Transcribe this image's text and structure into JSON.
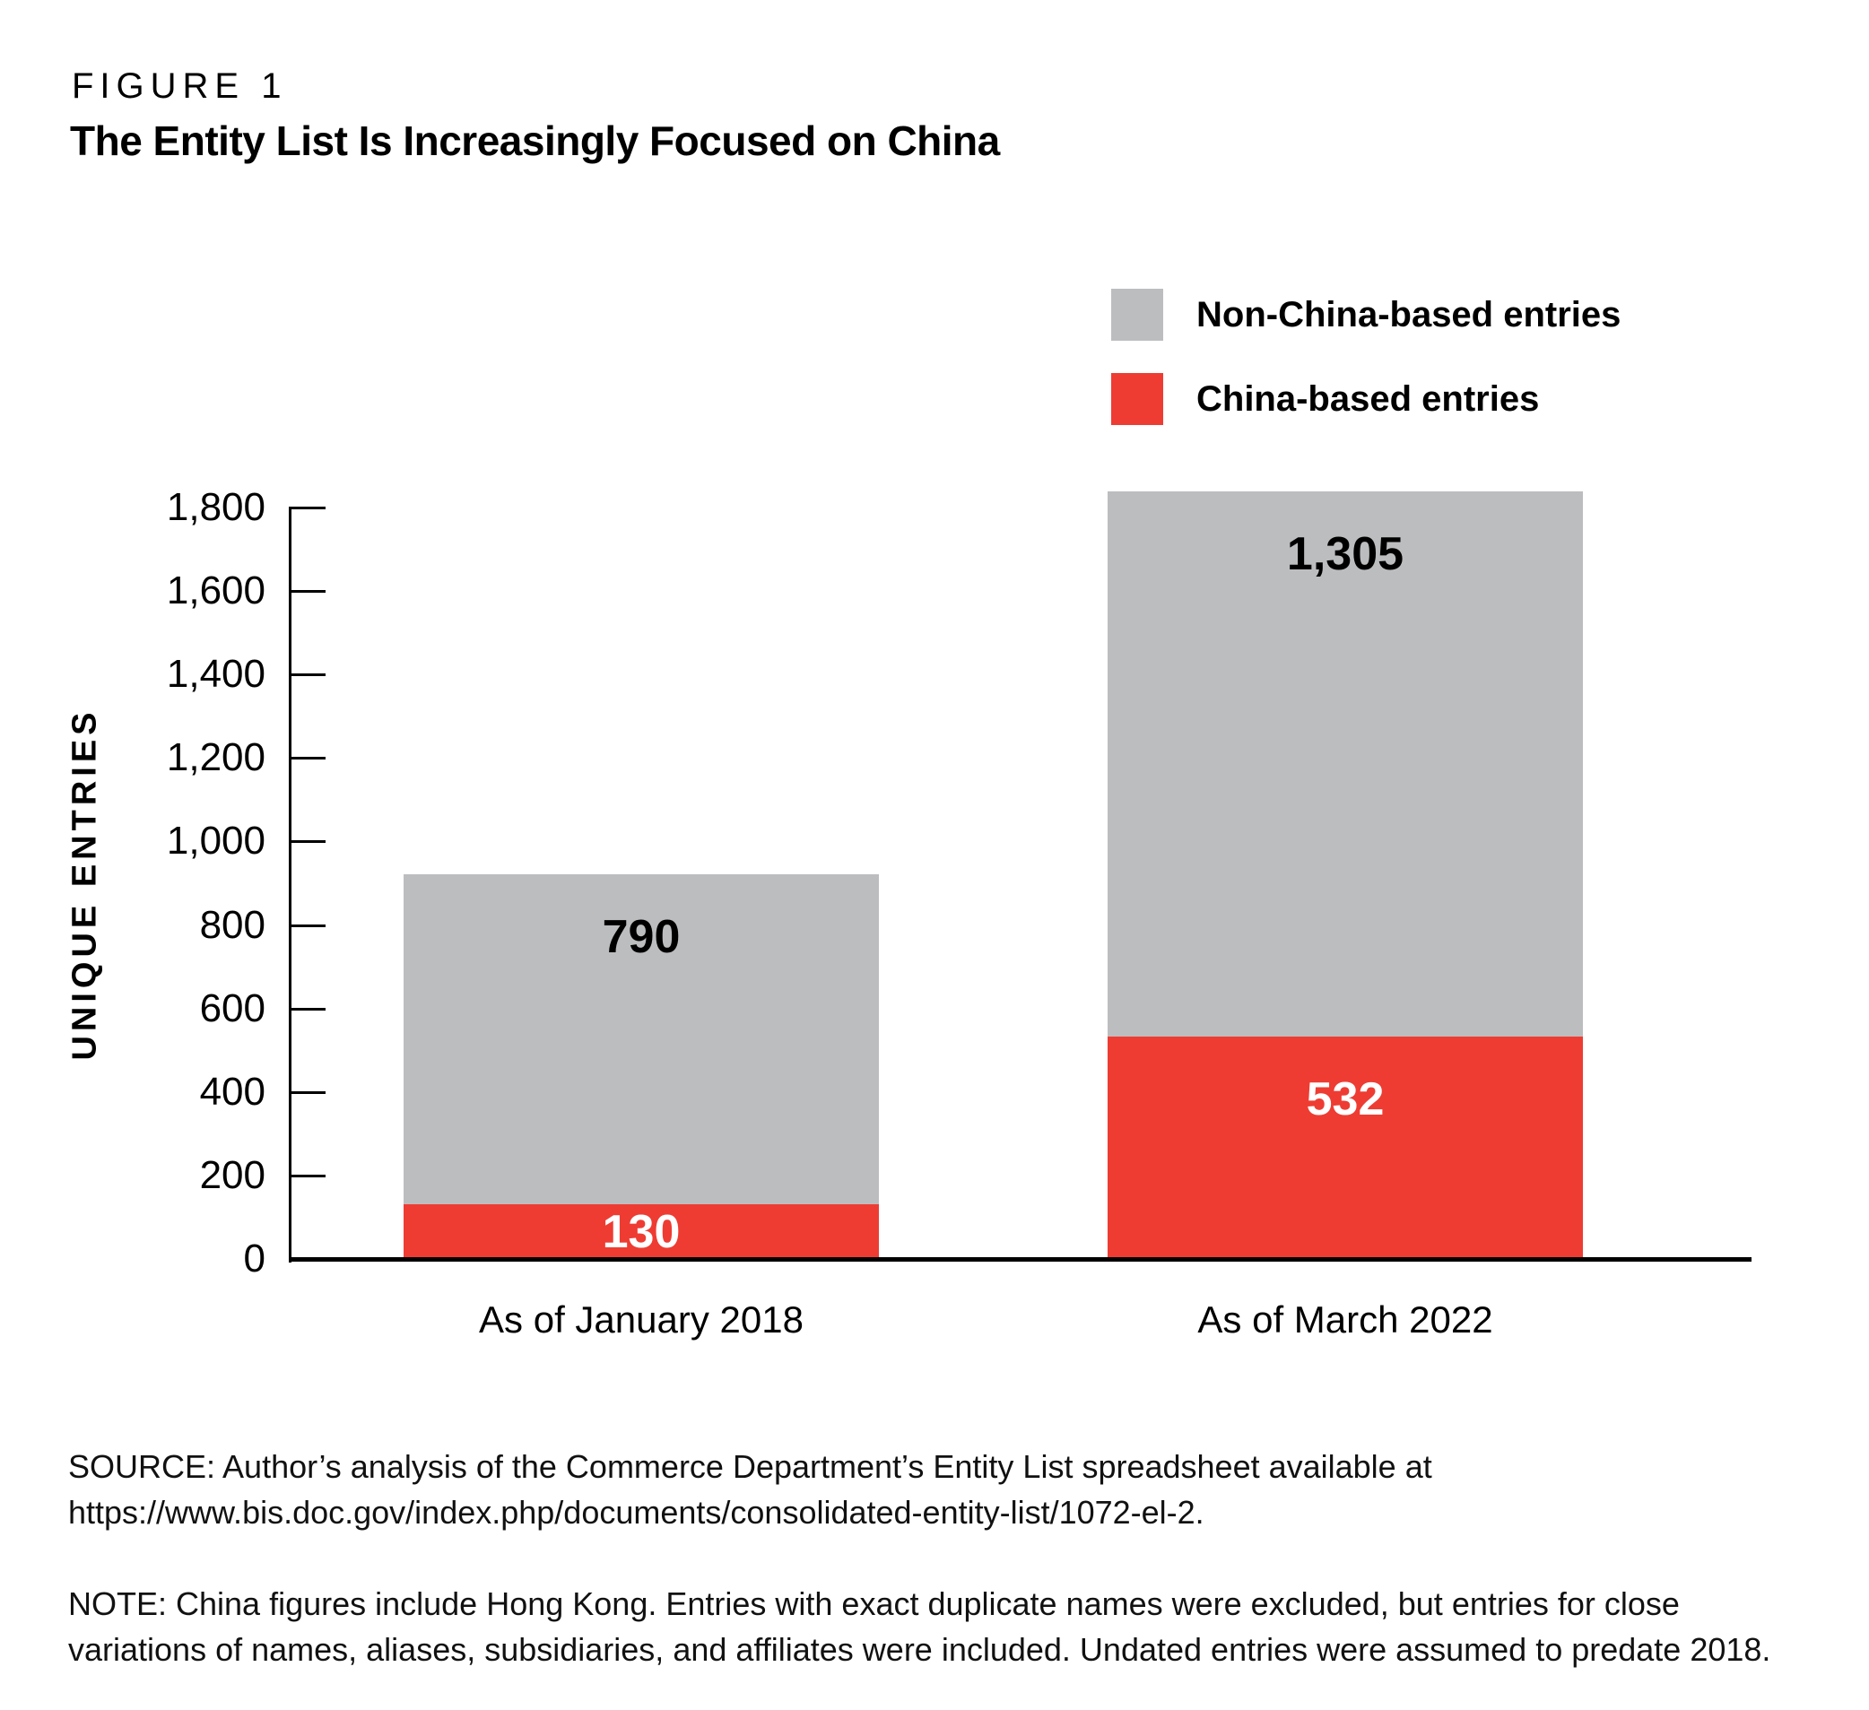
{
  "figure_label": "FIGURE 1",
  "title": "The Entity List Is Increasingly Focused on China",
  "legend": [
    {
      "label": "Non-China-based entries",
      "color": "#bcbdbf"
    },
    {
      "label": "China-based entries",
      "color": "#ee3c33"
    }
  ],
  "chart_data": {
    "type": "bar",
    "stacked": true,
    "title": "The Entity List Is Increasingly Focused on China",
    "categories": [
      "As of January 2018",
      "As of March 2022"
    ],
    "series": [
      {
        "name": "China-based entries",
        "color": "#ee3c33",
        "label_color": "#ffffff",
        "values": [
          130,
          532
        ],
        "labels": [
          "130",
          "532"
        ]
      },
      {
        "name": "Non-China-based entries",
        "color": "#bcbdbf",
        "label_color": "#000000",
        "values": [
          790,
          1305
        ],
        "labels": [
          "790",
          "1,305"
        ]
      }
    ],
    "xlabel": "",
    "ylabel": "UNIQUE ENTRIES",
    "ylim": [
      0,
      1800
    ],
    "ytick_step": 200,
    "ytick_labels": [
      "0",
      "200",
      "400",
      "600",
      "800",
      "1,000",
      "1,200",
      "1,400",
      "1,600",
      "1,800"
    ],
    "grid": false,
    "legend_position": "top-right"
  },
  "source": "SOURCE: Author’s analysis of the Commerce Department’s Entity List spreadsheet available at https://www.bis.doc.gov/index.php/documents/consolidated-entity-list/1072-el-2.",
  "note": "NOTE: China figures include Hong Kong. Entries with exact duplicate names were excluded, but entries for close variations of names, aliases, subsidiaries, and affiliates were included. Undated entries were assumed to predate 2018."
}
